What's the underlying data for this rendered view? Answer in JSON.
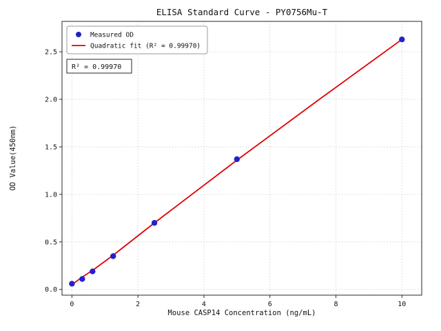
{
  "chart_data": {
    "type": "scatter",
    "title": "ELISA Standard Curve - PY0756Mu-T",
    "xlabel": "Mouse CASP14 Concentration (ng/mL)",
    "ylabel": "OD Value(450nm)",
    "xlim": [
      -0.3,
      10.6
    ],
    "ylim": [
      -0.06,
      2.82
    ],
    "xticks": [
      0,
      2,
      4,
      6,
      8,
      10
    ],
    "xtick_labels": [
      "0",
      "2",
      "4",
      "6",
      "8",
      "10"
    ],
    "yticks": [
      0,
      0.5,
      1,
      1.5,
      2,
      2.5
    ],
    "ytick_labels": [
      "0.0",
      "0.5",
      "1.0",
      "1.5",
      "2.0",
      "2.5"
    ],
    "grid": true,
    "legend_position": "upper left",
    "annotation": "R² = 0.99970",
    "r_squared": "0.99970",
    "series": [
      {
        "name": "Measured OD",
        "type": "scatter",
        "color": "#2222cc",
        "x": [
          0,
          0.3125,
          0.625,
          1.25,
          2.5,
          5,
          10
        ],
        "y": [
          0.06,
          0.11,
          0.19,
          0.35,
          0.7,
          1.37,
          2.63
        ]
      },
      {
        "name": "Quadratic fit (R² = 0.99970)",
        "type": "line",
        "color": "#e00000",
        "x": [
          0,
          0.3125,
          0.625,
          1.25,
          2.5,
          5,
          7.5,
          10
        ],
        "y": [
          0.05,
          0.13,
          0.2,
          0.36,
          0.7,
          1.36,
          2.0,
          2.63
        ]
      }
    ]
  }
}
